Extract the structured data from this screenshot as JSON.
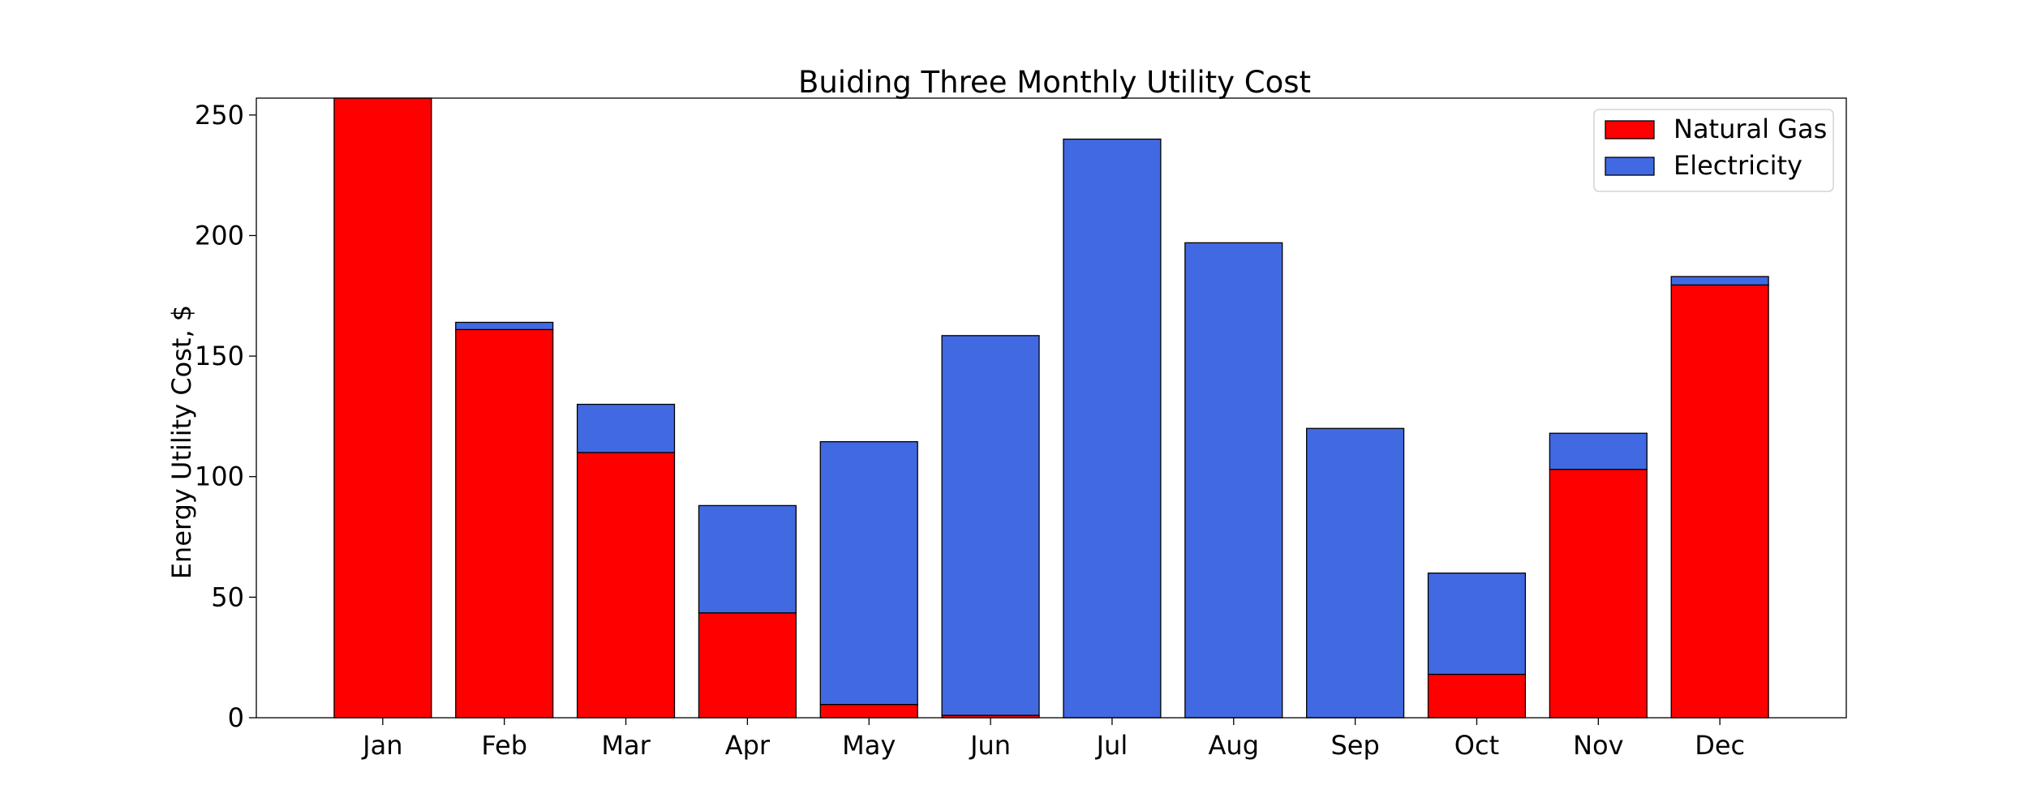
{
  "chart_data": {
    "type": "bar",
    "stacked": true,
    "title": "Buiding Three Monthly Utility Cost",
    "xlabel": "",
    "ylabel": "Energy Utility Cost, $",
    "categories": [
      "Jan",
      "Feb",
      "Mar",
      "Apr",
      "May",
      "Jun",
      "Jul",
      "Aug",
      "Sep",
      "Oct",
      "Nov",
      "Dec"
    ],
    "series": [
      {
        "name": "Natural Gas",
        "color": "#ff0000",
        "values": [
          257,
          161,
          110,
          43.5,
          5.5,
          1,
          0,
          0,
          0,
          18,
          103,
          179.5
        ]
      },
      {
        "name": "Electricity",
        "color": "#4169e1",
        "values": [
          0,
          3,
          20,
          44.5,
          109,
          157.5,
          240,
          197,
          120,
          42,
          15,
          3.5
        ]
      }
    ],
    "yticks": [
      0,
      50,
      100,
      150,
      200,
      250
    ],
    "ylim": [
      0,
      257
    ],
    "legend_position": "top-right",
    "grid": false
  }
}
